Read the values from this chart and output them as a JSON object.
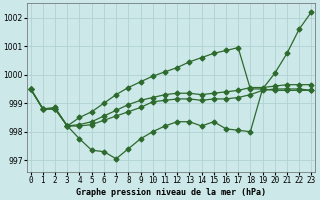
{
  "xlabel": "Graphe pression niveau de la mer (hPa)",
  "hours": [
    0,
    1,
    2,
    3,
    4,
    5,
    6,
    7,
    8,
    9,
    10,
    11,
    12,
    13,
    14,
    15,
    16,
    17,
    18,
    19,
    20,
    21,
    22,
    23
  ],
  "line_min": [
    999.5,
    998.8,
    998.8,
    998.2,
    997.75,
    997.35,
    997.3,
    997.05,
    997.4,
    997.75,
    998.0,
    998.2,
    998.35,
    998.35,
    998.2,
    998.35,
    998.1,
    998.05,
    998.0,
    999.5,
    1000.05,
    1000.75,
    1001.6,
    1002.2
  ],
  "line_flat1": [
    999.5,
    998.8,
    998.8,
    998.2,
    998.2,
    998.25,
    998.4,
    998.55,
    998.7,
    998.85,
    999.05,
    999.1,
    999.15,
    999.15,
    999.1,
    999.15,
    999.15,
    999.2,
    999.3,
    999.45,
    999.5,
    999.5,
    999.5,
    999.45
  ],
  "line_flat2": [
    999.5,
    998.8,
    998.8,
    998.2,
    998.25,
    998.35,
    998.55,
    998.75,
    998.95,
    999.1,
    999.2,
    999.3,
    999.35,
    999.35,
    999.3,
    999.35,
    999.4,
    999.45,
    999.55,
    999.55,
    999.6,
    999.65,
    999.65,
    999.65
  ],
  "line_max": [
    999.5,
    998.8,
    998.85,
    998.2,
    998.5,
    998.7,
    999.0,
    999.3,
    999.55,
    999.75,
    999.95,
    1000.1,
    1000.25,
    1000.45,
    1000.6,
    1000.75,
    1000.85,
    1000.95,
    999.5,
    999.5,
    999.45,
    999.45,
    999.45,
    999.45
  ],
  "line_color": "#2d6a2d",
  "bg_color": "#cce8e8",
  "grid_color": "#aacece",
  "ylim": [
    996.6,
    1002.5
  ],
  "yticks": [
    997,
    998,
    999,
    1000,
    1001,
    1002
  ],
  "marker": "D",
  "markersize": 2.5,
  "linewidth": 0.9
}
